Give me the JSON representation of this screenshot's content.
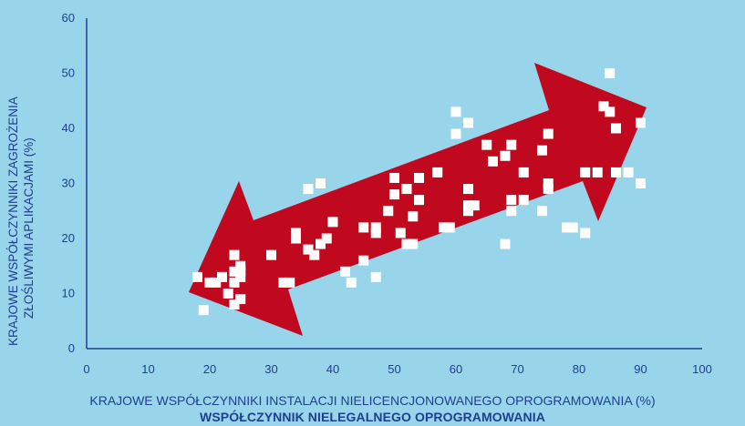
{
  "chart_data": {
    "type": "scatter",
    "xlabel": "KRAJOWE WSPÓŁCZYNNIKI INSTALACJI NIELICENCJONOWANEGO OPROGRAMOWANIA (%)",
    "subtitle": "WSPÓŁCZYNNIK NIELEGALNEGO OPROGRAMOWANIA",
    "ylabel_line1": "KRAJOWE WSPÓŁCZYNNIKI ZAGROŻENIA",
    "ylabel_line2": "ZŁOŚLIWYMI APLIKACJAMI (%)",
    "xlim": [
      0,
      100
    ],
    "ylim": [
      0,
      60
    ],
    "xticks": [
      0,
      10,
      20,
      30,
      40,
      50,
      60,
      70,
      80,
      90,
      100
    ],
    "yticks": [
      0,
      10,
      20,
      30,
      40,
      50,
      60
    ],
    "grid": false,
    "annotation": "two-headed red arrow indicating positive correlation",
    "colors": {
      "background": "#98d4ea",
      "arrow": "#c0091f",
      "points": "#ffffff",
      "axis": "#1f3f8f"
    },
    "points": [
      [
        18,
        13
      ],
      [
        19,
        7
      ],
      [
        20,
        12
      ],
      [
        21,
        12
      ],
      [
        22,
        13
      ],
      [
        23,
        10
      ],
      [
        24,
        17
      ],
      [
        24,
        14
      ],
      [
        24,
        12
      ],
      [
        24,
        8
      ],
      [
        25,
        15
      ],
      [
        25,
        14
      ],
      [
        25,
        13
      ],
      [
        25,
        9
      ],
      [
        30,
        17
      ],
      [
        32,
        12
      ],
      [
        33,
        12
      ],
      [
        34,
        21
      ],
      [
        34,
        20
      ],
      [
        36,
        18
      ],
      [
        36,
        29
      ],
      [
        37,
        17
      ],
      [
        38,
        30
      ],
      [
        38,
        19
      ],
      [
        39,
        20
      ],
      [
        40,
        23
      ],
      [
        42,
        14
      ],
      [
        43,
        12
      ],
      [
        45,
        22
      ],
      [
        45,
        16
      ],
      [
        47,
        22
      ],
      [
        47,
        21
      ],
      [
        47,
        13
      ],
      [
        49,
        25
      ],
      [
        50,
        31
      ],
      [
        50,
        28
      ],
      [
        51,
        21
      ],
      [
        52,
        29
      ],
      [
        52,
        19
      ],
      [
        53,
        24
      ],
      [
        53,
        19
      ],
      [
        54,
        31
      ],
      [
        54,
        27
      ],
      [
        57,
        32
      ],
      [
        58,
        22
      ],
      [
        59,
        22
      ],
      [
        60,
        43
      ],
      [
        60,
        39
      ],
      [
        62,
        41
      ],
      [
        62,
        29
      ],
      [
        62,
        26
      ],
      [
        62,
        25
      ],
      [
        63,
        26
      ],
      [
        65,
        37
      ],
      [
        66,
        34
      ],
      [
        68,
        35
      ],
      [
        68,
        19
      ],
      [
        69,
        37
      ],
      [
        69,
        27
      ],
      [
        69,
        25
      ],
      [
        71,
        32
      ],
      [
        71,
        27
      ],
      [
        74,
        36
      ],
      [
        74,
        25
      ],
      [
        75,
        39
      ],
      [
        75,
        30
      ],
      [
        75,
        29
      ],
      [
        78,
        22
      ],
      [
        79,
        22
      ],
      [
        81,
        32
      ],
      [
        81,
        21
      ],
      [
        83,
        32
      ],
      [
        84,
        44
      ],
      [
        85,
        50
      ],
      [
        85,
        43
      ],
      [
        86,
        40
      ],
      [
        86,
        32
      ],
      [
        88,
        32
      ],
      [
        90,
        41
      ],
      [
        90,
        30
      ]
    ]
  }
}
